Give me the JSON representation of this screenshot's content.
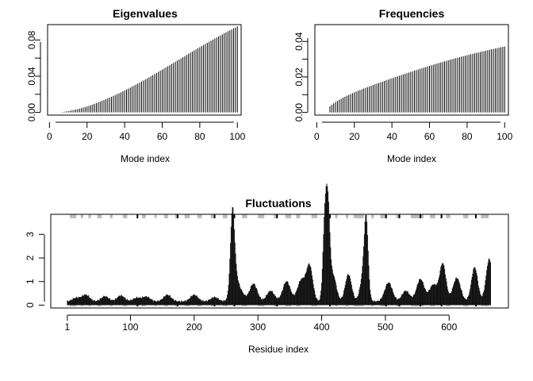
{
  "chart_data": [
    {
      "id": "eigenvalues",
      "type": "bar",
      "title": "Eigenvalues",
      "xlabel": "Mode index",
      "ylabel": "",
      "xlim": [
        -1,
        102
      ],
      "ylim": [
        -0.003,
        0.097
      ],
      "xticks": [
        0,
        20,
        40,
        60,
        80,
        100
      ],
      "yticks": [
        0.0,
        0.04,
        0.08
      ],
      "yticks_minor": [
        0.02,
        0.06
      ],
      "ytick_labels": [
        "0.00",
        "0.04",
        "0.08"
      ],
      "n_modes": 100,
      "values": [
        0.0,
        0.0,
        0.0,
        0.0,
        0.0,
        0.0,
        0.0005,
        0.00078,
        0.00107,
        0.0014,
        0.00178,
        0.0022,
        0.00265,
        0.00312,
        0.0036,
        0.00413,
        0.0047,
        0.0053,
        0.00592,
        0.00658,
        0.00725,
        0.00797,
        0.00874,
        0.0095,
        0.0103,
        0.01112,
        0.01193,
        0.0128,
        0.01367,
        0.01455,
        0.01545,
        0.01637,
        0.01728,
        0.01822,
        0.01918,
        0.02015,
        0.02114,
        0.02213,
        0.02315,
        0.02418,
        0.02522,
        0.02628,
        0.02735,
        0.02843,
        0.02955,
        0.03065,
        0.03175,
        0.0329,
        0.03405,
        0.0352,
        0.03637,
        0.03755,
        0.03873,
        0.03993,
        0.04115,
        0.04237,
        0.0436,
        0.04483,
        0.04605,
        0.04728,
        0.0485,
        0.04973,
        0.05097,
        0.0522,
        0.05345,
        0.0547,
        0.05595,
        0.0572,
        0.05845,
        0.0597,
        0.06095,
        0.0622,
        0.06345,
        0.0647,
        0.06595,
        0.0672,
        0.06843,
        0.06965,
        0.07087,
        0.07208,
        0.0733,
        0.0745,
        0.0757,
        0.0769,
        0.07808,
        0.07927,
        0.08045,
        0.08162,
        0.08278,
        0.08394,
        0.08508,
        0.08622,
        0.08735,
        0.08848,
        0.0896,
        0.0907,
        0.0918,
        0.09288,
        0.09395,
        0.095
      ]
    },
    {
      "id": "frequencies",
      "type": "bar",
      "title": "Frequencies",
      "xlabel": "Mode index",
      "ylabel": "",
      "xlim": [
        -1,
        102
      ],
      "ylim": [
        -0.0015,
        0.0495
      ],
      "xticks": [
        0,
        20,
        40,
        60,
        80,
        100
      ],
      "yticks": [
        0.0,
        0.02,
        0.04
      ],
      "yticks_minor": [
        0.01,
        0.03
      ],
      "ytick_labels": [
        "0.00",
        "0.02",
        "0.04"
      ],
      "n_modes": 100,
      "values": [
        0.0,
        0.0,
        0.0,
        0.0,
        0.0,
        0.0,
        0.0035,
        0.00438,
        0.00515,
        0.00588,
        0.00655,
        0.00718,
        0.00777,
        0.00833,
        0.00887,
        0.00938,
        0.00988,
        0.01037,
        0.01084,
        0.0113,
        0.01175,
        0.01219,
        0.01262,
        0.01304,
        0.01346,
        0.01387,
        0.01428,
        0.01468,
        0.01508,
        0.01547,
        0.01586,
        0.01625,
        0.01663,
        0.01701,
        0.01739,
        0.01777,
        0.01814,
        0.01851,
        0.01888,
        0.01925,
        0.01961,
        0.01998,
        0.02034,
        0.0207,
        0.02106,
        0.02142,
        0.02178,
        0.02213,
        0.02249,
        0.02284,
        0.02319,
        0.02354,
        0.02389,
        0.02423,
        0.02457,
        0.02491,
        0.02525,
        0.02559,
        0.02592,
        0.02625,
        0.02658,
        0.02691,
        0.02723,
        0.02755,
        0.02787,
        0.02818,
        0.02849,
        0.0288,
        0.0291,
        0.0294,
        0.0297,
        0.03,
        0.03029,
        0.03058,
        0.03087,
        0.03115,
        0.03143,
        0.03171,
        0.03198,
        0.03225,
        0.03252,
        0.03279,
        0.03305,
        0.03331,
        0.03357,
        0.03383,
        0.03408,
        0.03433,
        0.03458,
        0.03483,
        0.03508,
        0.03532,
        0.03556,
        0.0358,
        0.03604,
        0.03628,
        0.03651,
        0.03674,
        0.03697,
        0.0372
      ]
    },
    {
      "id": "fluctuations",
      "type": "bar",
      "title": "Fluctuations",
      "xlabel": "Residue index",
      "ylabel": "",
      "xlim": [
        -25,
        693
      ],
      "ylim": [
        -0.12,
        3.85
      ],
      "xticks": [
        1,
        100,
        200,
        300,
        400,
        500,
        600
      ],
      "yticks": [
        0,
        1,
        2,
        3
      ],
      "n_residues": 665,
      "baseline": 0.12,
      "background_amplitude": 0.08,
      "peaks": [
        {
          "residue": 15,
          "height": 0.15
        },
        {
          "residue": 30,
          "height": 0.28
        },
        {
          "residue": 60,
          "height": 0.22
        },
        {
          "residue": 85,
          "height": 0.25
        },
        {
          "residue": 110,
          "height": 0.15
        },
        {
          "residue": 125,
          "height": 0.2
        },
        {
          "residue": 158,
          "height": 0.28
        },
        {
          "residue": 200,
          "height": 0.28
        },
        {
          "residue": 232,
          "height": 0.18
        },
        {
          "residue": 260,
          "height": 2.75
        },
        {
          "residue": 262,
          "height": 1.3
        },
        {
          "residue": 272,
          "height": 0.45
        },
        {
          "residue": 293,
          "height": 0.75
        },
        {
          "residue": 320,
          "height": 0.45
        },
        {
          "residue": 345,
          "height": 0.85
        },
        {
          "residue": 368,
          "height": 0.9
        },
        {
          "residue": 381,
          "height": 1.5
        },
        {
          "residue": 405,
          "height": 3.25
        },
        {
          "residue": 410,
          "height": 3.55
        },
        {
          "residue": 418,
          "height": 1.1
        },
        {
          "residue": 442,
          "height": 1.15
        },
        {
          "residue": 470,
          "height": 2.8
        },
        {
          "residue": 466,
          "height": 1.2
        },
        {
          "residue": 505,
          "height": 0.8
        },
        {
          "residue": 532,
          "height": 0.45
        },
        {
          "residue": 555,
          "height": 0.95
        },
        {
          "residue": 575,
          "height": 0.7
        },
        {
          "residue": 590,
          "height": 1.6
        },
        {
          "residue": 612,
          "height": 1.0
        },
        {
          "residue": 640,
          "height": 1.45
        },
        {
          "residue": 663,
          "height": 1.8
        }
      ],
      "sse_top_grey": [
        [
          5,
          15
        ],
        [
          22,
          26
        ],
        [
          34,
          38
        ],
        [
          48,
          55
        ],
        [
          68,
          72
        ],
        [
          88,
          95
        ],
        [
          118,
          124
        ],
        [
          138,
          141
        ],
        [
          153,
          159
        ],
        [
          170,
          174
        ],
        [
          185,
          193
        ],
        [
          205,
          212
        ],
        [
          226,
          230
        ],
        [
          245,
          252
        ],
        [
          275,
          283
        ],
        [
          300,
          310
        ],
        [
          325,
          331
        ],
        [
          343,
          352
        ],
        [
          360,
          366
        ],
        [
          384,
          393
        ],
        [
          421,
          425
        ],
        [
          438,
          442
        ],
        [
          450,
          466
        ],
        [
          478,
          482
        ],
        [
          492,
          501
        ],
        [
          517,
          521
        ],
        [
          540,
          560
        ],
        [
          570,
          578
        ],
        [
          595,
          602
        ],
        [
          622,
          630
        ],
        [
          650,
          662
        ]
      ],
      "sse_top_black": [
        111,
        174,
        232,
        263,
        330,
        413,
        501,
        522,
        555,
        588,
        642
      ]
    }
  ]
}
